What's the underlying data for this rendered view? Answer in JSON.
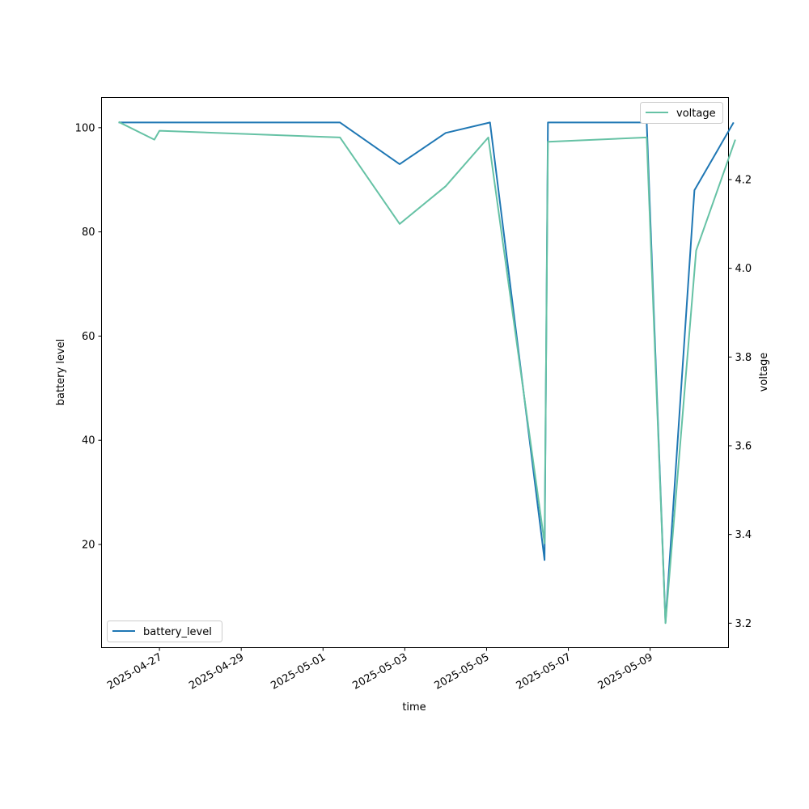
{
  "chart_data": {
    "type": "line",
    "xlabel": "time",
    "ylabel_left": "battery level",
    "ylabel_right": "voltage",
    "x_ticks": [
      "2025-04-27",
      "2025-04-29",
      "2025-05-01",
      "2025-05-03",
      "2025-05-05",
      "2025-05-07",
      "2025-05-09"
    ],
    "y_left_ticks": [
      20,
      40,
      60,
      80,
      100
    ],
    "y_right_ticks": [
      "3.2",
      "3.4",
      "3.6",
      "3.8",
      "4.0",
      "4.2"
    ],
    "xlim": [
      "2025-04-25T14:00",
      "2025-05-10T22:00"
    ],
    "ylim_left": [
      0.2,
      105.8
    ],
    "ylim_right": [
      3.145,
      4.385
    ],
    "grid": false,
    "series": [
      {
        "name": "battery_level",
        "axis": "left",
        "color": "#1f77b4",
        "legend_position": "lower-left",
        "points": [
          [
            "2025-04-26T00:00",
            101
          ],
          [
            "2025-05-01T10:00",
            101
          ],
          [
            "2025-05-02T21:00",
            93
          ],
          [
            "2025-05-04T00:00",
            99
          ],
          [
            "2025-05-05T02:00",
            101
          ],
          [
            "2025-05-06T10:00",
            17
          ],
          [
            "2025-05-06T12:00",
            101
          ],
          [
            "2025-05-08T22:00",
            101
          ],
          [
            "2025-05-09T09:00",
            5
          ],
          [
            "2025-05-10T02:00",
            88
          ],
          [
            "2025-05-11T01:00",
            101
          ]
        ]
      },
      {
        "name": "voltage",
        "axis": "right",
        "color": "#66c2a5",
        "legend_position": "upper-right",
        "points": [
          [
            "2025-04-26T00:00",
            4.33
          ],
          [
            "2025-04-26T21:00",
            4.29
          ],
          [
            "2025-04-27T00:00",
            4.31
          ],
          [
            "2025-05-01T10:00",
            4.295
          ],
          [
            "2025-05-02T21:00",
            4.1
          ],
          [
            "2025-05-04T00:00",
            4.185
          ],
          [
            "2025-05-05T01:00",
            4.295
          ],
          [
            "2025-05-06T10:00",
            3.38
          ],
          [
            "2025-05-06T12:00",
            4.285
          ],
          [
            "2025-05-08T22:00",
            4.295
          ],
          [
            "2025-05-09T09:00",
            3.2
          ],
          [
            "2025-05-10T03:00",
            4.04
          ],
          [
            "2025-05-11T02:00",
            4.29
          ]
        ]
      }
    ]
  }
}
